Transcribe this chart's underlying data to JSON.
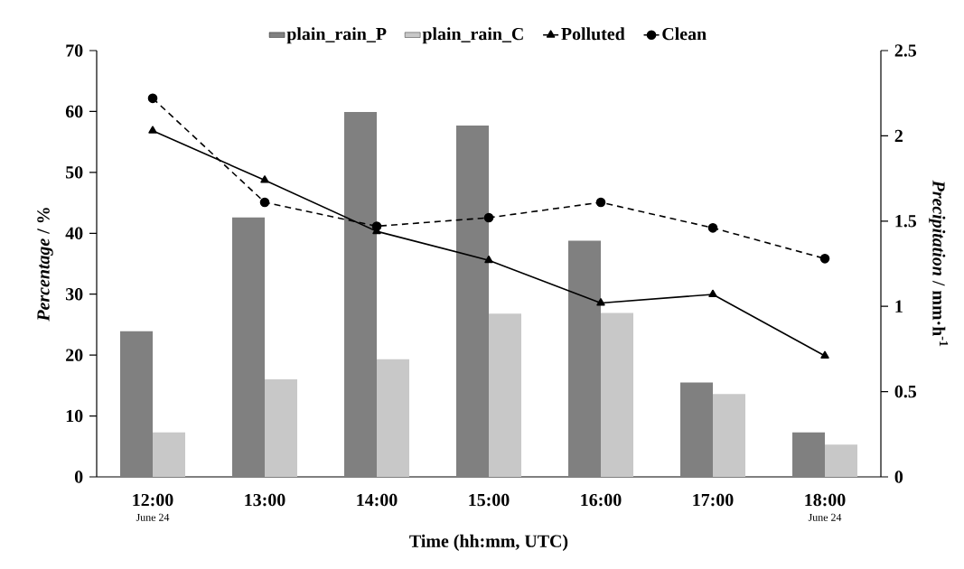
{
  "chart_data": {
    "type": "bar",
    "xlabel": "Time (hh:mm, UTC)",
    "ylabel": "*Percentage* / %",
    "y2label": "*Precipitation* / mm·h$^{-1}$",
    "categories": [
      "12:00",
      "13:00",
      "14:00",
      "15:00",
      "16:00",
      "17:00",
      "18:00"
    ],
    "series": [
      {
        "name": "plain_rain_P",
        "type": "bar",
        "color": "#808080",
        "values": [
          23.9,
          42.6,
          59.9,
          57.7,
          38.8,
          15.5,
          7.3
        ]
      },
      {
        "name": "plain_rain_C",
        "type": "bar",
        "color": "#c8c8c8",
        "values": [
          7.3,
          16.0,
          19.3,
          26.8,
          26.9,
          13.6,
          5.3
        ]
      },
      {
        "name": "Polluted",
        "type": "line",
        "axis": "y2",
        "color": "#000000",
        "marker": "triangle",
        "line_style": "solid",
        "values": [
          2.03,
          1.74,
          1.44,
          1.27,
          1.02,
          1.07,
          0.71
        ]
      },
      {
        "name": "Clean",
        "type": "line",
        "axis": "y2",
        "color": "#000000",
        "marker": "circle",
        "line_style": "dashed",
        "values": [
          2.22,
          1.61,
          1.47,
          1.52,
          1.61,
          1.46,
          1.28
        ]
      }
    ],
    "ylim": [
      0,
      70
    ],
    "yticks": [
      0,
      10,
      20,
      30,
      40,
      50,
      60,
      70
    ],
    "y2lim": [
      0,
      2.5
    ],
    "y2ticks": [
      0,
      0.5,
      1,
      1.5,
      2,
      2.5
    ],
    "annotations": [
      "June 24",
      "June 24"
    ],
    "legend": "top",
    "grid": false
  }
}
